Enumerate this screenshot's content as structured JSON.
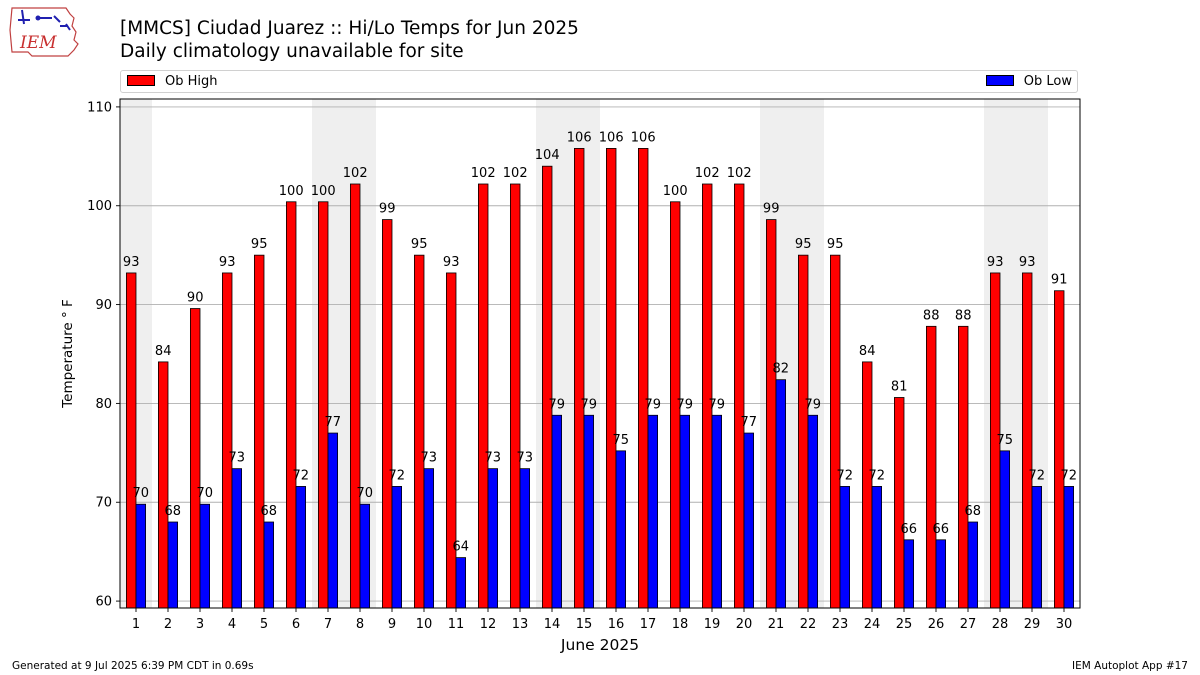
{
  "header": {
    "title_line1": "[MMCS] Ciudad Juarez :: Hi/Lo Temps for Jun 2025",
    "title_line2": "Daily climatology unavailable for site",
    "logo_text": "IEM"
  },
  "colors": {
    "high": "#ff0000",
    "low": "#0000ff",
    "weekend_band": "#efefef",
    "grid": "#b0b0b0"
  },
  "footer": {
    "generated": "Generated at 9 Jul 2025 6:39 PM CDT in 0.69s",
    "app": "IEM Autoplot App #17"
  },
  "chart_data": {
    "type": "bar",
    "title": "[MMCS] Ciudad Juarez :: Hi/Lo Temps for Jun 2025",
    "subtitle": "Daily climatology unavailable for site",
    "xlabel": "June 2025",
    "ylabel": "Temperature ° F",
    "ylim": [
      59.3,
      110.8
    ],
    "yticks": [
      60,
      70,
      80,
      90,
      100,
      110
    ],
    "grid": true,
    "legend_placement": "top, spanning plot width",
    "categories": [
      "1",
      "2",
      "3",
      "4",
      "5",
      "6",
      "7",
      "8",
      "9",
      "10",
      "11",
      "12",
      "13",
      "14",
      "15",
      "16",
      "17",
      "18",
      "19",
      "20",
      "21",
      "22",
      "23",
      "24",
      "25",
      "26",
      "27",
      "28",
      "29",
      "30"
    ],
    "series": [
      {
        "name": "Ob High",
        "color": "#ff0000",
        "values": [
          93.2,
          84.2,
          89.6,
          93.2,
          95.0,
          100.4,
          100.4,
          102.2,
          98.6,
          95.0,
          93.2,
          102.2,
          102.2,
          104.0,
          105.8,
          105.8,
          105.8,
          100.4,
          102.2,
          102.2,
          98.6,
          95.0,
          95.0,
          84.2,
          80.6,
          87.8,
          87.8,
          93.2,
          93.2,
          91.4
        ],
        "labels": [
          "93",
          "84",
          "90",
          "93",
          "95",
          "100",
          "100",
          "102",
          "99",
          "95",
          "93",
          "102",
          "102",
          "104",
          "106",
          "106",
          "106",
          "100",
          "102",
          "102",
          "99",
          "95",
          "95",
          "84",
          "81",
          "88",
          "88",
          "93",
          "93",
          "91"
        ]
      },
      {
        "name": "Ob Low",
        "color": "#0000ff",
        "values": [
          69.8,
          68.0,
          69.8,
          73.4,
          68.0,
          71.6,
          77.0,
          69.8,
          71.6,
          73.4,
          64.4,
          73.4,
          73.4,
          78.8,
          78.8,
          75.2,
          78.8,
          78.8,
          78.8,
          77.0,
          82.4,
          78.8,
          71.6,
          71.6,
          66.2,
          66.2,
          68.0,
          75.2,
          71.6,
          71.6
        ],
        "labels": [
          "70",
          "68",
          "70",
          "73",
          "68",
          "72",
          "77",
          "70",
          "72",
          "73",
          "64",
          "73",
          "73",
          "79",
          "79",
          "75",
          "79",
          "79",
          "79",
          "77",
          "82",
          "79",
          "72",
          "72",
          "66",
          "66",
          "68",
          "75",
          "72",
          "72"
        ]
      }
    ],
    "weekend_days": [
      "1",
      "7",
      "8",
      "14",
      "15",
      "21",
      "22",
      "28",
      "29"
    ]
  }
}
